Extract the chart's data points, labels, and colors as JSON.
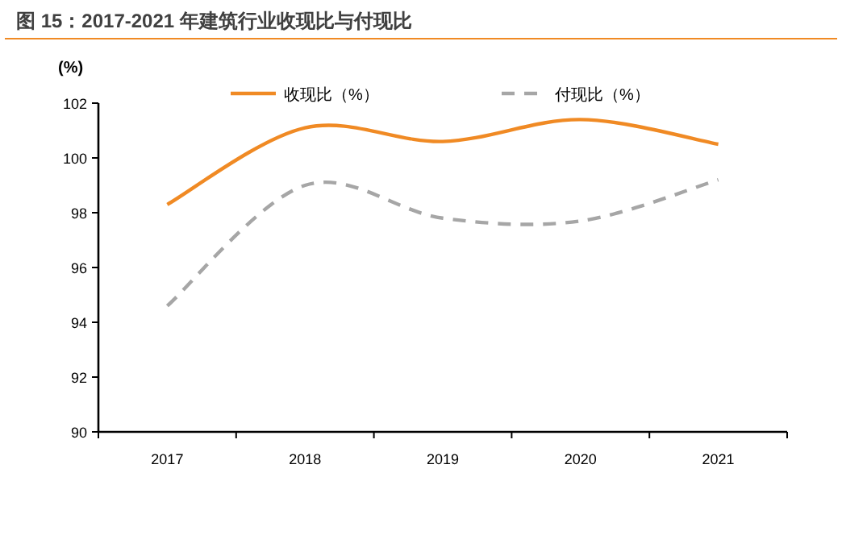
{
  "chart_data": {
    "type": "line",
    "title": "图 15：2017-2021 年建筑行业收现比与付现比",
    "ylabel": "(%)",
    "categories": [
      "2017",
      "2018",
      "2019",
      "2020",
      "2021"
    ],
    "series": [
      {
        "name": "收现比（%）",
        "color": "#f08a24",
        "line_style": "solid",
        "values": [
          98.3,
          101.1,
          100.6,
          101.4,
          100.5
        ]
      },
      {
        "name": "付现比（%）",
        "color": "#a6a6a6",
        "line_style": "dashed",
        "values": [
          94.6,
          99.0,
          97.8,
          97.7,
          99.2
        ]
      }
    ],
    "ylim": [
      90,
      102
    ],
    "yticks": [
      90,
      92,
      94,
      96,
      98,
      100,
      102
    ],
    "grid": false,
    "legend": "top",
    "marker": "none"
  }
}
